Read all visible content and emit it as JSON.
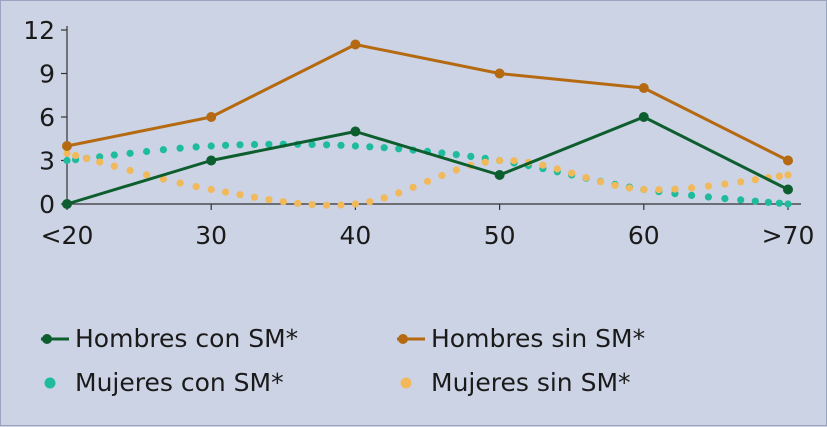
{
  "chart_data": {
    "type": "line",
    "title": "",
    "xlabel": "",
    "ylabel": "",
    "categories": [
      "<20",
      "30",
      "40",
      "50",
      "60",
      ">70"
    ],
    "ylim": [
      0,
      12
    ],
    "yticks": [
      "0",
      "3",
      "6",
      "9",
      "12"
    ],
    "grid": false,
    "legend_position": "bottom",
    "series": [
      {
        "name": "Hombres con SM*",
        "style": "solid-line-markers",
        "color": "#0d5e2e",
        "values": [
          0,
          3,
          5,
          2,
          6,
          1
        ]
      },
      {
        "name": "Hombres sin SM*",
        "style": "solid-line-markers",
        "color": "#b56a12",
        "values": [
          4,
          6,
          11,
          9,
          8,
          3
        ]
      },
      {
        "name": "Mujeres con SM*",
        "style": "dotted",
        "color": "#1ebc9c",
        "values": [
          3,
          4,
          4,
          3,
          1,
          0
        ]
      },
      {
        "name": "Mujeres sin SM*",
        "style": "dotted",
        "color": "#f2b95a",
        "values": [
          3.5,
          1,
          0,
          3,
          1,
          2
        ]
      }
    ]
  }
}
